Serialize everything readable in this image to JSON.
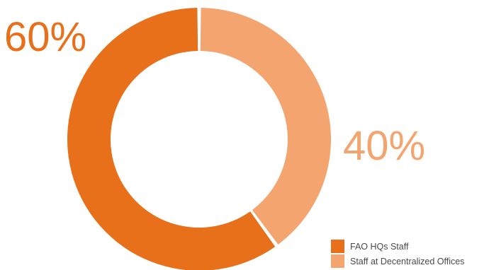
{
  "chart_data": {
    "type": "pie",
    "donut": true,
    "categories": [
      "FAO HQs Staff",
      "Staff at Decentralized Offices"
    ],
    "values": [
      60,
      40
    ],
    "labels": [
      "60%",
      "40%"
    ],
    "colors": [
      "#E8701A",
      "#F4A46E"
    ],
    "title": "",
    "legend_position": "bottom-right"
  },
  "legend": {
    "items": [
      {
        "label": "FAO HQs Staff",
        "color": "#E8701A"
      },
      {
        "label": "Staff at Decentralized Offices",
        "color": "#F4A46E"
      }
    ]
  }
}
